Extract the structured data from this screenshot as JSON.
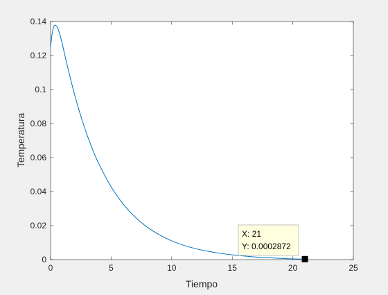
{
  "chart_data": {
    "type": "line",
    "title": "",
    "xlabel": "Tiempo",
    "ylabel": "Temperatura",
    "xlim": [
      0,
      25
    ],
    "ylim": [
      0,
      0.14
    ],
    "grid": false,
    "x_ticks": [
      0,
      5,
      10,
      15,
      20,
      25
    ],
    "x_tick_labels": [
      "0",
      "5",
      "10",
      "15",
      "20",
      "25"
    ],
    "y_ticks": [
      0,
      0.02,
      0.04,
      0.06,
      0.08,
      0.1,
      0.12,
      0.14
    ],
    "y_tick_labels": [
      "0",
      "0.02",
      "0.04",
      "0.06",
      "0.08",
      "0.1",
      "0.12",
      "0.14"
    ],
    "series": [
      {
        "color": "#0072bd",
        "x": [
          0,
          0.1,
          0.2,
          0.3,
          0.4,
          0.5,
          0.6,
          0.8,
          1.0,
          1.2,
          1.5,
          2,
          2.5,
          3,
          3.5,
          4,
          5,
          6,
          7,
          8,
          9,
          10,
          11,
          12,
          13,
          14,
          15,
          16,
          17,
          18,
          19,
          20,
          21
        ],
        "y": [
          0.125,
          0.1315,
          0.1355,
          0.1375,
          0.1379,
          0.1372,
          0.136,
          0.1315,
          0.1258,
          0.1195,
          0.1105,
          0.0965,
          0.0843,
          0.0736,
          0.0642,
          0.0561,
          0.0428,
          0.0326,
          0.0249,
          0.019,
          0.0145,
          0.011,
          0.0084,
          0.0064,
          0.0049,
          0.0037,
          0.0028,
          0.0021,
          0.0015,
          0.0011,
          0.0007,
          0.0004,
          0.0002872
        ]
      }
    ],
    "datatip": {
      "x": 21,
      "y": 0.0002872,
      "line_x": "X: 21",
      "line_y": "Y: 0.0002872"
    }
  }
}
